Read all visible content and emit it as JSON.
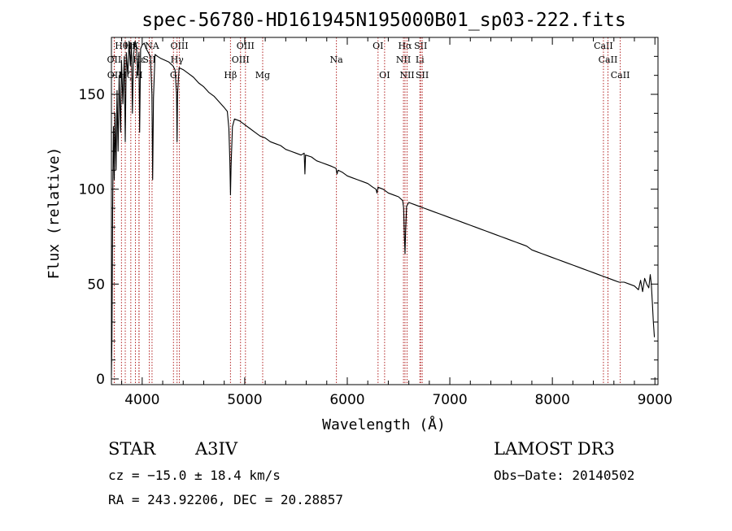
{
  "chart_data": {
    "type": "line",
    "title": "spec-56780-HD161945N195000B01_sp03-222.fits",
    "xlabel": "Wavelength (Å)",
    "ylabel": "Flux (relative)",
    "xlim": [
      3700,
      9030
    ],
    "ylim": [
      -3,
      180
    ],
    "xticks": [
      4000,
      5000,
      6000,
      7000,
      8000,
      9000
    ],
    "yticks": [
      0,
      50,
      100,
      150
    ],
    "minor_xtick_step": 200,
    "minor_ytick_step": 10,
    "series": [
      {
        "name": "spectrum",
        "points": [
          [
            3700,
            2
          ],
          [
            3705,
            20
          ],
          [
            3712,
            90
          ],
          [
            3720,
            133
          ],
          [
            3728,
            105
          ],
          [
            3735,
            140
          ],
          [
            3745,
            110
          ],
          [
            3755,
            152
          ],
          [
            3765,
            120
          ],
          [
            3775,
            160
          ],
          [
            3790,
            130
          ],
          [
            3798,
            168
          ],
          [
            3812,
            145
          ],
          [
            3825,
            170
          ],
          [
            3835,
            125
          ],
          [
            3845,
            172
          ],
          [
            3860,
            160
          ],
          [
            3872,
            178
          ],
          [
            3885,
            165
          ],
          [
            3895,
            177
          ],
          [
            3905,
            140
          ],
          [
            3915,
            170
          ],
          [
            3930,
            178
          ],
          [
            3945,
            175
          ],
          [
            3955,
            160
          ],
          [
            3968,
            172
          ],
          [
            3975,
            130
          ],
          [
            3985,
            174
          ],
          [
            4000,
            176
          ],
          [
            4020,
            177
          ],
          [
            4040,
            174
          ],
          [
            4060,
            172
          ],
          [
            4080,
            170
          ],
          [
            4095,
            150
          ],
          [
            4102,
            105
          ],
          [
            4110,
            148
          ],
          [
            4125,
            171
          ],
          [
            4150,
            170
          ],
          [
            4180,
            169
          ],
          [
            4220,
            168
          ],
          [
            4260,
            167
          ],
          [
            4300,
            165
          ],
          [
            4320,
            163
          ],
          [
            4335,
            150
          ],
          [
            4340,
            125
          ],
          [
            4345,
            150
          ],
          [
            4360,
            164
          ],
          [
            4400,
            163
          ],
          [
            4450,
            161
          ],
          [
            4500,
            159
          ],
          [
            4550,
            156
          ],
          [
            4600,
            154
          ],
          [
            4650,
            151
          ],
          [
            4700,
            149
          ],
          [
            4750,
            146
          ],
          [
            4800,
            143
          ],
          [
            4830,
            141
          ],
          [
            4845,
            132
          ],
          [
            4855,
            115
          ],
          [
            4861,
            97
          ],
          [
            4867,
            112
          ],
          [
            4880,
            133
          ],
          [
            4900,
            137
          ],
          [
            4950,
            136
          ],
          [
            5000,
            134
          ],
          [
            5050,
            132
          ],
          [
            5100,
            130
          ],
          [
            5150,
            128
          ],
          [
            5200,
            127
          ],
          [
            5250,
            125
          ],
          [
            5300,
            124
          ],
          [
            5350,
            123
          ],
          [
            5400,
            121
          ],
          [
            5450,
            120
          ],
          [
            5500,
            119
          ],
          [
            5550,
            118
          ],
          [
            5580,
            119
          ],
          [
            5587,
            108
          ],
          [
            5593,
            118
          ],
          [
            5650,
            117
          ],
          [
            5700,
            115
          ],
          [
            5750,
            114
          ],
          [
            5800,
            113
          ],
          [
            5850,
            112
          ],
          [
            5890,
            111
          ],
          [
            5900,
            108
          ],
          [
            5910,
            110
          ],
          [
            5950,
            109
          ],
          [
            6000,
            107
          ],
          [
            6050,
            106
          ],
          [
            6100,
            105
          ],
          [
            6150,
            104
          ],
          [
            6200,
            103
          ],
          [
            6250,
            101
          ],
          [
            6280,
            100
          ],
          [
            6290,
            98
          ],
          [
            6300,
            101
          ],
          [
            6350,
            100
          ],
          [
            6400,
            98
          ],
          [
            6450,
            97
          ],
          [
            6500,
            96
          ],
          [
            6540,
            94
          ],
          [
            6550,
            90
          ],
          [
            6557,
            75
          ],
          [
            6563,
            66
          ],
          [
            6569,
            78
          ],
          [
            6578,
            91
          ],
          [
            6600,
            93
          ],
          [
            6650,
            92
          ],
          [
            6700,
            91
          ],
          [
            6750,
            90
          ],
          [
            6800,
            89
          ],
          [
            6850,
            88
          ],
          [
            6900,
            87
          ],
          [
            6950,
            86
          ],
          [
            7000,
            85
          ],
          [
            7050,
            84
          ],
          [
            7100,
            83
          ],
          [
            7150,
            82
          ],
          [
            7200,
            81
          ],
          [
            7250,
            80
          ],
          [
            7300,
            79
          ],
          [
            7350,
            78
          ],
          [
            7400,
            77
          ],
          [
            7450,
            76
          ],
          [
            7500,
            75
          ],
          [
            7550,
            74
          ],
          [
            7600,
            73
          ],
          [
            7650,
            72
          ],
          [
            7700,
            71
          ],
          [
            7750,
            70
          ],
          [
            7800,
            68
          ],
          [
            7850,
            67
          ],
          [
            7900,
            66
          ],
          [
            7950,
            65
          ],
          [
            8000,
            64
          ],
          [
            8050,
            63
          ],
          [
            8100,
            62
          ],
          [
            8150,
            61
          ],
          [
            8200,
            60
          ],
          [
            8250,
            59
          ],
          [
            8300,
            58
          ],
          [
            8350,
            57
          ],
          [
            8400,
            56
          ],
          [
            8450,
            55
          ],
          [
            8500,
            54
          ],
          [
            8550,
            53
          ],
          [
            8600,
            52
          ],
          [
            8650,
            51
          ],
          [
            8700,
            51
          ],
          [
            8750,
            50
          ],
          [
            8800,
            49
          ],
          [
            8840,
            47
          ],
          [
            8860,
            52
          ],
          [
            8880,
            46
          ],
          [
            8900,
            53
          ],
          [
            8920,
            50
          ],
          [
            8940,
            48
          ],
          [
            8955,
            55
          ],
          [
            8965,
            50
          ],
          [
            8975,
            40
          ],
          [
            8985,
            30
          ],
          [
            8995,
            22
          ]
        ]
      }
    ],
    "spectral_lines": [
      {
        "label": "Hθ",
        "wl": 3798,
        "row": 1
      },
      {
        "label": "OII",
        "wl": 3727,
        "row": 2
      },
      {
        "label": "OII",
        "wl": 3729,
        "row": 3
      },
      {
        "label": "Hζ",
        "wl": 3835,
        "row": 3
      },
      {
        "label": "Hη",
        "wl": 3889,
        "row": 1
      },
      {
        "label": "Hε",
        "wl": 3970,
        "row": 2
      },
      {
        "label": "K",
        "wl": 3934,
        "row": 1
      },
      {
        "label": "H",
        "wl": 3968,
        "row": 3
      },
      {
        "label": "NA",
        "wl": 4096,
        "row": 1
      },
      {
        "label": "SII",
        "wl": 4069,
        "row": 2
      },
      {
        "label": "OIII",
        "wl": 4363,
        "row": 1
      },
      {
        "label": "Hγ",
        "wl": 4340,
        "row": 2
      },
      {
        "label": "G",
        "wl": 4305,
        "row": 3
      },
      {
        "label": "Hβ",
        "wl": 4861,
        "row": 3
      },
      {
        "label": "OIII",
        "wl": 4959,
        "row": 2
      },
      {
        "label": "OIII",
        "wl": 5007,
        "row": 1
      },
      {
        "label": "Mg",
        "wl": 5175,
        "row": 3
      },
      {
        "label": "Na",
        "wl": 5894,
        "row": 2
      },
      {
        "label": "OI",
        "wl": 6300,
        "row": 1
      },
      {
        "label": "OI",
        "wl": 6364,
        "row": 3
      },
      {
        "label": "Hα",
        "wl": 6563,
        "row": 1
      },
      {
        "label": "NII",
        "wl": 6548,
        "row": 2
      },
      {
        "label": "NII",
        "wl": 6583,
        "row": 3
      },
      {
        "label": "SII",
        "wl": 6716,
        "row": 1
      },
      {
        "label": "Li",
        "wl": 6708,
        "row": 2
      },
      {
        "label": "SII",
        "wl": 6731,
        "row": 3
      },
      {
        "label": "CaII",
        "wl": 8498,
        "row": 1
      },
      {
        "label": "CaII",
        "wl": 8542,
        "row": 2
      },
      {
        "label": "CaII",
        "wl": 8662,
        "row": 3
      }
    ],
    "colors": {
      "spectrum": "#000000",
      "line_marker": "#b22222",
      "axes": "#000000"
    }
  },
  "info": {
    "object_class": "STAR",
    "subclass": "A3IV",
    "survey": "LAMOST DR3",
    "cz": "cz = −15.0 ± 18.4 km/s",
    "obs_date": "Obs−Date: 20140502",
    "radec": "RA = 243.92206, DEC =  20.28857"
  }
}
